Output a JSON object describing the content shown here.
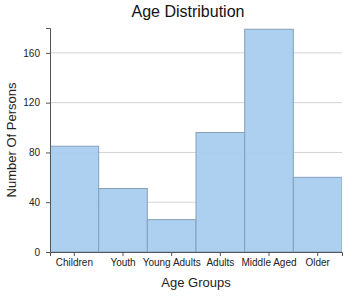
{
  "chart_data": {
    "type": "bar",
    "title": "Age Distribution",
    "x_label": "Age Groups",
    "y_label": "Number Of Persons",
    "categories": [
      "Children",
      "Youth",
      "Young Adults",
      "Adults",
      "Middle Aged",
      "Older"
    ],
    "values": [
      85,
      51,
      26,
      96,
      179,
      60
    ],
    "color": "#a9cdef",
    "ylim": [
      0,
      180
    ],
    "yticks": [
      0,
      40,
      80,
      120,
      160
    ],
    "grid": true
  }
}
